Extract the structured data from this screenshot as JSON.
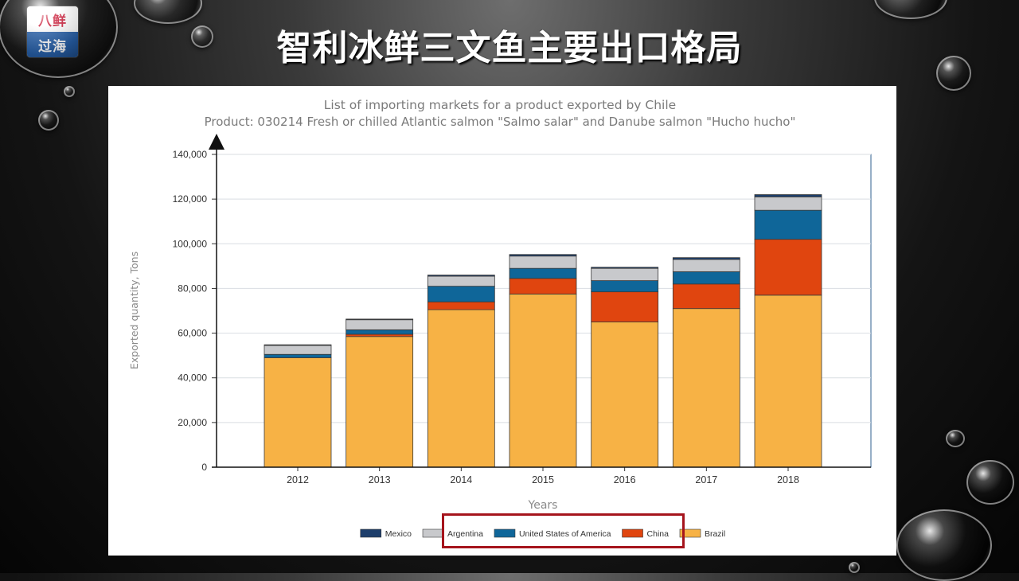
{
  "logo": {
    "line1": "八鲜",
    "line2": "过海"
  },
  "page_title": "智利冰鲜三文鱼主要出口格局",
  "chart_data": {
    "type": "bar",
    "stacked": true,
    "title": "List of importing markets for a product exported by Chile",
    "subtitle": "Product: 030214 Fresh or chilled Atlantic salmon \"Salmo salar\" and Danube salmon \"Hucho hucho\"",
    "xlabel": "Years",
    "ylabel": "Exported quantity, Tons",
    "ylim": [
      0,
      140000
    ],
    "yticks": [
      "0",
      "20,000",
      "40,000",
      "60,000",
      "80,000",
      "100,000",
      "120,000",
      "140,000"
    ],
    "categories": [
      "2012",
      "2013",
      "2014",
      "2015",
      "2016",
      "2017",
      "2018"
    ],
    "series": [
      {
        "name": "Brazil",
        "color": "#f7b245",
        "values": [
          49000,
          58500,
          70500,
          77500,
          65000,
          71000,
          77000
        ]
      },
      {
        "name": "China",
        "color": "#e0450f",
        "values": [
          0,
          1000,
          3500,
          7000,
          13500,
          11000,
          25000
        ]
      },
      {
        "name": "United States of America",
        "color": "#0f6699",
        "values": [
          1500,
          2000,
          7000,
          4500,
          5000,
          5500,
          13000
        ]
      },
      {
        "name": "Argentina",
        "color": "#c8c9cc",
        "values": [
          4000,
          4500,
          4500,
          5500,
          5500,
          5500,
          6000
        ]
      },
      {
        "name": "Mexico",
        "color": "#1d3e6b",
        "values": [
          300,
          300,
          500,
          700,
          500,
          800,
          1000
        ]
      }
    ],
    "legend_order": [
      "Mexico",
      "Argentina",
      "United States of America",
      "China",
      "Brazil"
    ],
    "highlighted_legend_items": [
      "United States of America",
      "China",
      "Brazil"
    ],
    "grid": true,
    "legend_position": "bottom"
  }
}
